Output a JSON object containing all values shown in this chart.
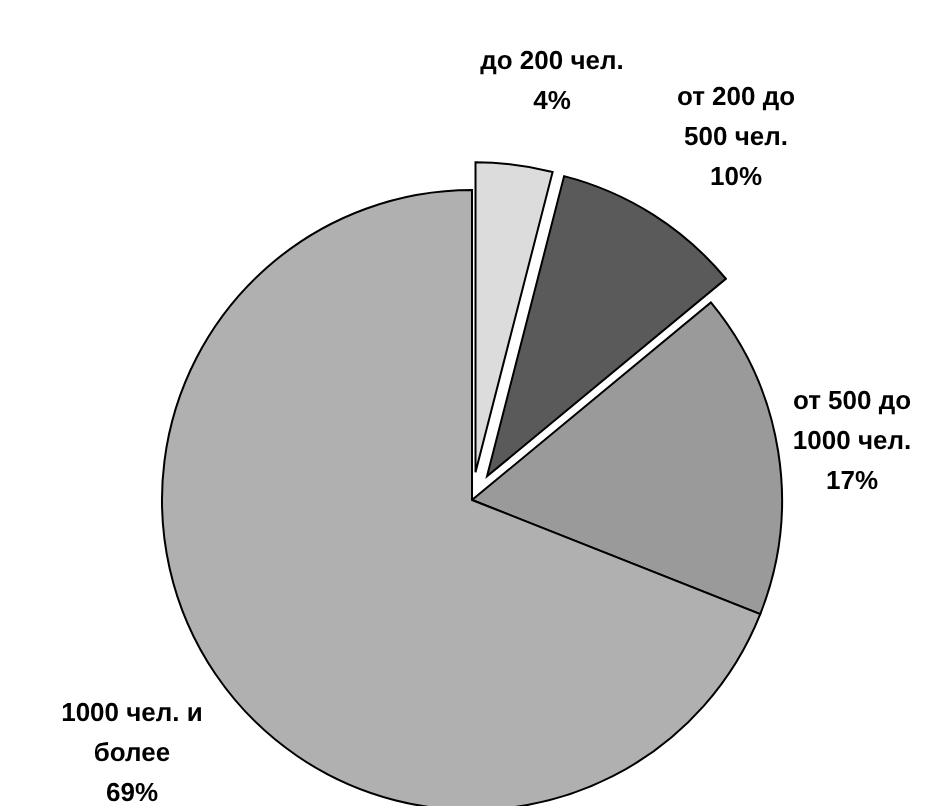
{
  "chart_data": {
    "type": "pie",
    "categories": [
      "до 200 чел.",
      "от 200 до\n500 чел.",
      "от 500 до\n1000 чел.",
      "1000 чел. и\nболее"
    ],
    "values": [
      4,
      10,
      17,
      69
    ],
    "value_labels": [
      "4%",
      "10%",
      "17%",
      "69%"
    ],
    "colors": [
      "#dcdcdc",
      "#5a5a5a",
      "#9a9a9a",
      "#b0b0b0"
    ]
  }
}
